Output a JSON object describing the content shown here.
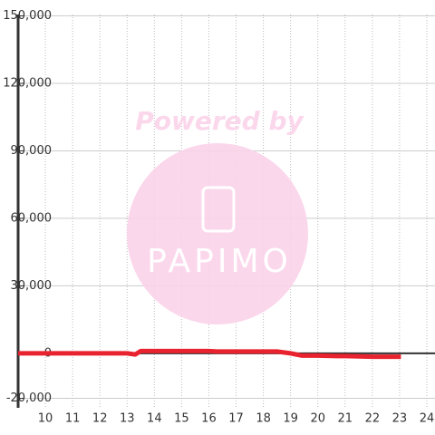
{
  "chart_data": {
    "type": "line",
    "watermark": {
      "top": "Powered by",
      "logo": "PAPIMO"
    },
    "x": [
      9,
      10,
      11,
      12,
      13,
      13.3,
      13.5,
      14,
      15,
      16,
      16.3,
      17,
      18,
      18.5,
      19,
      19.4,
      20,
      20.7,
      21,
      22,
      23.05
    ],
    "series": [
      {
        "color": "#e8222e",
        "values": [
          0,
          0,
          0,
          0,
          0,
          -500,
          1000,
          1000,
          1000,
          1000,
          800,
          800,
          800,
          800,
          0,
          -1000,
          -1000,
          -1200,
          -1200,
          -1500,
          -1500
        ]
      }
    ],
    "xlim": [
      9,
      24.3
    ],
    "xticks": [
      10,
      11,
      12,
      13,
      14,
      15,
      16,
      17,
      18,
      19,
      20,
      21,
      22,
      23,
      24
    ],
    "ylim": [
      -21000,
      150600
    ],
    "yticks": [
      {
        "value": -20000,
        "label": "-20,000"
      },
      0,
      {
        "value": 30000,
        "label": "30,000"
      },
      {
        "value": 60000,
        "label": "60,000"
      },
      {
        "value": 90000,
        "label": "90,000"
      },
      {
        "value": 120000,
        "label": "120,000"
      },
      {
        "value": 150000,
        "label": "150,000"
      }
    ],
    "grid": true
  }
}
